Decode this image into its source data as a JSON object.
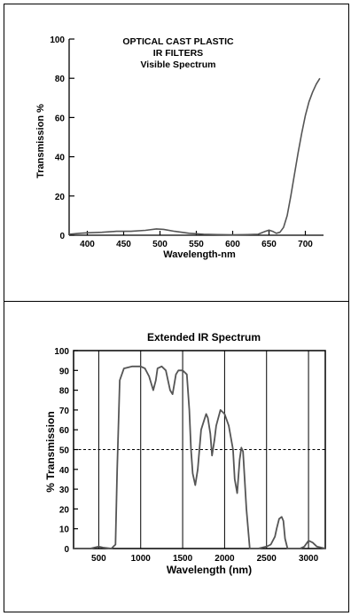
{
  "chart_data": [
    {
      "type": "line",
      "title_lines": [
        "OPTICAL CAST PLASTIC",
        "IR FILTERS",
        "Visible Spectrum"
      ],
      "xlabel": "Wavelength-nm",
      "ylabel": "Transmission %",
      "xlim": [
        375,
        725
      ],
      "ylim": [
        0,
        100
      ],
      "xticks": [
        400,
        450,
        500,
        550,
        600,
        650,
        700
      ],
      "yticks": [
        0,
        20,
        40,
        60,
        80,
        100
      ],
      "grid": false,
      "series": [
        {
          "x": [
            375,
            390,
            400,
            420,
            440,
            460,
            480,
            495,
            505,
            520,
            540,
            560,
            580,
            600,
            620,
            635,
            645,
            650,
            655,
            660,
            665,
            670,
            675,
            680,
            685,
            690,
            695,
            700,
            705,
            710,
            715,
            720
          ],
          "y": [
            0.5,
            1,
            1.2,
            1.5,
            2,
            2,
            2.5,
            3.2,
            3,
            2,
            1,
            0.5,
            0.3,
            0.2,
            0.3,
            0.5,
            2,
            2.6,
            2,
            1,
            1.5,
            4,
            10,
            20,
            31,
            42,
            52,
            61,
            68,
            73,
            77,
            80
          ]
        }
      ]
    },
    {
      "type": "line",
      "title": "Extended IR Spectrum",
      "xlabel": "Wavelength (nm)",
      "ylabel": "% Transmission",
      "xlim": [
        200,
        3200
      ],
      "ylim": [
        0,
        100
      ],
      "xticks": [
        500,
        1000,
        1500,
        2000,
        2500,
        3000
      ],
      "yticks": [
        0,
        10,
        20,
        30,
        40,
        50,
        60,
        70,
        80,
        90,
        100
      ],
      "vertical_gridlines": [
        500,
        1000,
        1500,
        2000,
        2500,
        3000
      ],
      "reference_line": {
        "y": 50,
        "style": "dashed"
      },
      "series": [
        {
          "x": [
            200,
            400,
            500,
            550,
            650,
            700,
            720,
            750,
            800,
            900,
            1000,
            1050,
            1100,
            1150,
            1180,
            1200,
            1250,
            1300,
            1350,
            1380,
            1420,
            1450,
            1500,
            1550,
            1580,
            1600,
            1620,
            1650,
            1680,
            1700,
            1720,
            1750,
            1780,
            1800,
            1830,
            1850,
            1880,
            1900,
            1950,
            2000,
            2050,
            2100,
            2120,
            2150,
            2180,
            2200,
            2220,
            2260,
            2300,
            2400,
            2500,
            2550,
            2600,
            2620,
            2650,
            2680,
            2700,
            2720,
            2750,
            2800,
            2900,
            2950,
            3000,
            3050,
            3100,
            3200
          ],
          "y": [
            0,
            0,
            1,
            0.5,
            0,
            2,
            40,
            85,
            91,
            92,
            92,
            91,
            87,
            80,
            85,
            91,
            92,
            90,
            80,
            78,
            88,
            90,
            90,
            88,
            70,
            50,
            38,
            32,
            40,
            50,
            60,
            64,
            68,
            66,
            58,
            47,
            55,
            62,
            70,
            68,
            62,
            50,
            35,
            28,
            45,
            51,
            49,
            20,
            0,
            0,
            1,
            2,
            6,
            10,
            15,
            16,
            14,
            5,
            0,
            0,
            0,
            1,
            4,
            3,
            1,
            0
          ]
        }
      ]
    }
  ]
}
